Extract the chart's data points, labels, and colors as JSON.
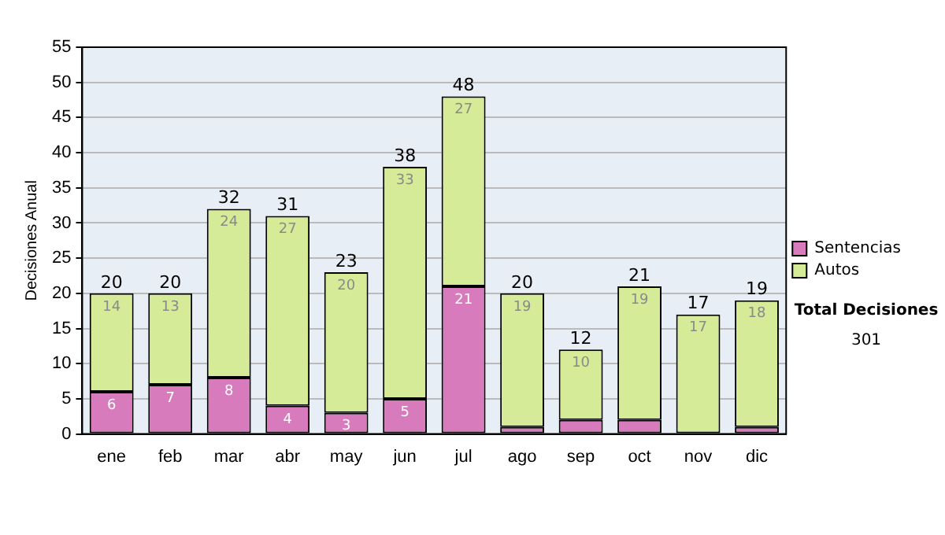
{
  "chart_data": {
    "type": "bar",
    "stacked": true,
    "ylabel": "Decisiones Anual",
    "categories": [
      "ene",
      "feb",
      "mar",
      "abr",
      "may",
      "jun",
      "jul",
      "ago",
      "sep",
      "oct",
      "nov",
      "dic"
    ],
    "series": [
      {
        "name": "Sentencias",
        "color": "#d87bbd",
        "values": [
          6,
          7,
          8,
          4,
          3,
          5,
          21,
          1,
          2,
          2,
          0,
          1
        ],
        "value_labels": [
          "6",
          "7",
          "8",
          "4",
          "3",
          "5",
          "21",
          null,
          null,
          null,
          null,
          null
        ]
      },
      {
        "name": "Autos",
        "color": "#d6eb98",
        "values": [
          14,
          13,
          24,
          27,
          20,
          33,
          27,
          19,
          10,
          19,
          17,
          18
        ],
        "value_labels": [
          "14",
          "13",
          "24",
          "27",
          "20",
          "33",
          "27",
          "19",
          "10",
          "19",
          "17",
          "18"
        ]
      }
    ],
    "totals": [
      "20",
      "20",
      "32",
      "31",
      "23",
      "38",
      "48",
      "20",
      "12",
      "21",
      "17",
      "19"
    ],
    "ylim": [
      0,
      55
    ],
    "yticks": [
      0,
      5,
      10,
      15,
      20,
      25,
      30,
      35,
      40,
      45,
      50,
      55
    ],
    "grid": "y",
    "legend": "right",
    "annotations": [
      "Total Decisiones",
      "301"
    ]
  }
}
